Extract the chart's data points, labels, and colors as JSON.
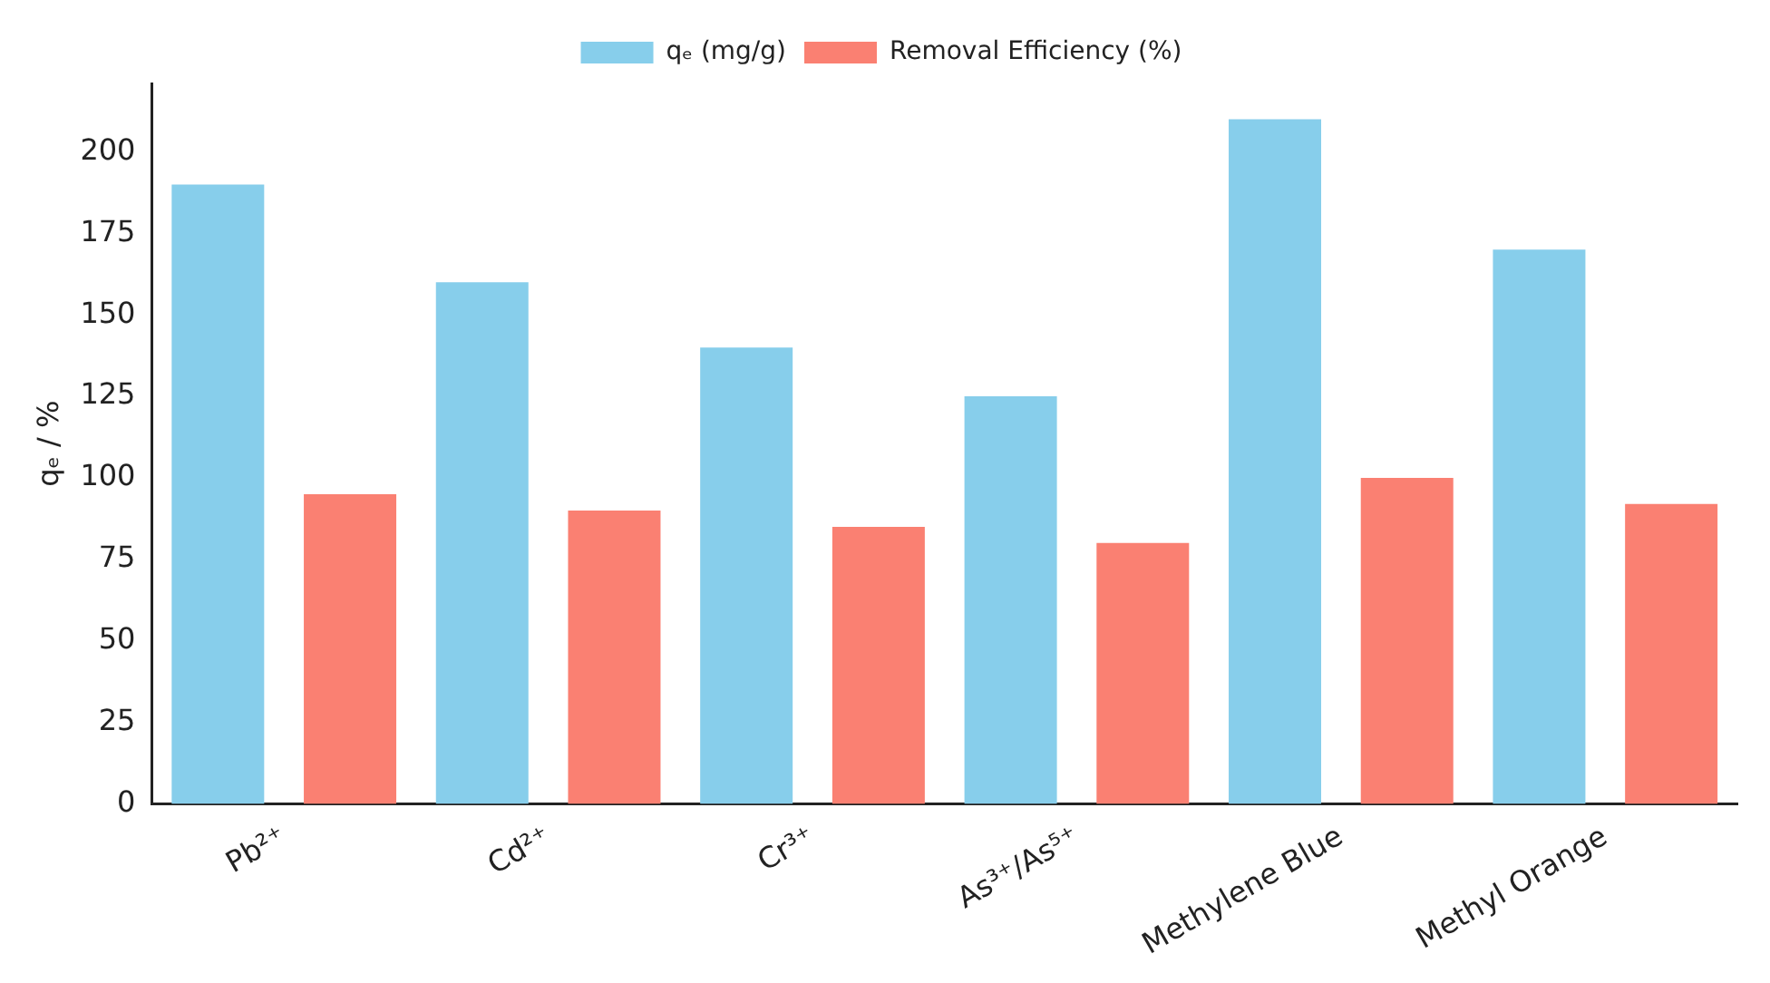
{
  "chart_data": {
    "type": "bar",
    "ylabel": "qₑ / %",
    "categories": [
      "Pb²⁺",
      "Cd²⁺",
      "Cr³⁺",
      "As³⁺/As⁵⁺",
      "Methylene Blue",
      "Methyl Orange"
    ],
    "series": [
      {
        "name": "qₑ (mg/g)",
        "color": "#87ceeb",
        "values": [
          190,
          160,
          140,
          125,
          210,
          170
        ]
      },
      {
        "name": "Removal Efficiency (%)",
        "color": "#fa8072",
        "values": [
          95,
          90,
          85,
          80,
          100,
          92
        ]
      }
    ],
    "ylim": [
      0,
      221
    ],
    "yticks": [
      0,
      25,
      50,
      75,
      100,
      125,
      150,
      175,
      200
    ],
    "grid": false,
    "legend": "top"
  }
}
